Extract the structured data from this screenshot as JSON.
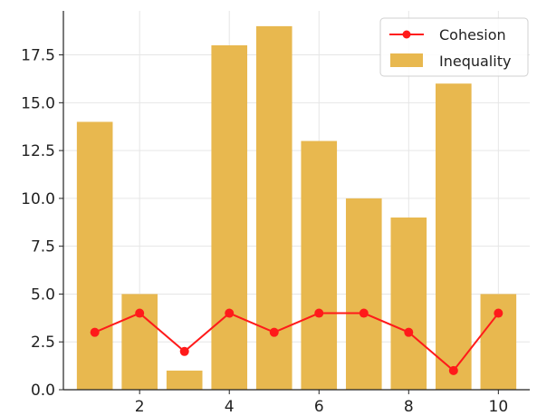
{
  "chart_data": {
    "type": "bar",
    "x": [
      1,
      2,
      3,
      4,
      5,
      6,
      7,
      8,
      9,
      10
    ],
    "series": [
      {
        "name": "Inequality",
        "kind": "bar",
        "color": "#e8b84f",
        "values": [
          14,
          5,
          1,
          18,
          19,
          13,
          10,
          9,
          16,
          5
        ]
      },
      {
        "name": "Cohesion",
        "kind": "line",
        "color": "#ff1a1a",
        "marker": "circle",
        "values": [
          3,
          4,
          2,
          4,
          3,
          4,
          4,
          3,
          1,
          4
        ]
      }
    ],
    "xticks": [
      2,
      4,
      6,
      8,
      10
    ],
    "yticks": [
      0.0,
      2.5,
      5.0,
      7.5,
      10.0,
      12.5,
      15.0,
      17.5
    ],
    "xlim": [
      0.3,
      10.7
    ],
    "ylim": [
      0,
      19.8
    ],
    "grid": true,
    "legend": {
      "position": "top-right",
      "entries": [
        "Cohesion",
        "Inequality"
      ]
    }
  }
}
